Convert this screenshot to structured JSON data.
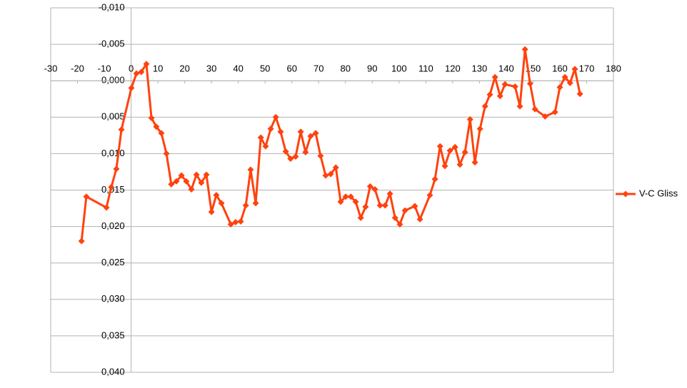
{
  "chart_data": {
    "type": "line",
    "x": [
      -18.5,
      -16.7,
      -9.2,
      -7.4,
      -5.5,
      -3.6,
      0.1,
      2.0,
      3.8,
      5.7,
      7.6,
      9.4,
      11.3,
      13.2,
      15.0,
      16.9,
      18.8,
      20.6,
      22.5,
      24.4,
      26.2,
      28.1,
      30.0,
      31.8,
      33.7,
      37.2,
      39.0,
      40.9,
      42.8,
      44.6,
      46.5,
      48.4,
      50.2,
      52.1,
      54.0,
      55.8,
      57.7,
      59.5,
      61.4,
      63.3,
      65.1,
      67.0,
      68.9,
      70.7,
      72.6,
      74.5,
      76.4,
      78.2,
      80.1,
      82.0,
      83.8,
      85.7,
      87.5,
      89.2,
      91.0,
      92.9,
      94.8,
      96.6,
      98.5,
      100.3,
      102.2,
      105.9,
      107.8,
      111.5,
      113.4,
      115.3,
      117.1,
      119.0,
      120.9,
      122.7,
      124.6,
      126.5,
      128.3,
      130.2,
      132.1,
      133.9,
      135.8,
      137.7,
      139.5,
      143.3,
      145.1,
      147.0,
      148.9,
      150.7,
      154.5,
      158.2,
      160.0,
      161.9,
      163.8,
      165.6,
      167.5
    ],
    "series": [
      {
        "name": "V-C Gliss",
        "color": "#ff420e",
        "values": [
          0.022,
          0.0159,
          0.0174,
          0.0146,
          0.0121,
          0.0067,
          0.001,
          -0.001,
          -0.0012,
          -0.0023,
          0.0051,
          0.0063,
          0.0072,
          0.01,
          0.0142,
          0.0138,
          0.013,
          0.0138,
          0.0149,
          0.0129,
          0.014,
          0.0129,
          0.018,
          0.0157,
          0.0168,
          0.0197,
          0.0194,
          0.0193,
          0.0171,
          0.0122,
          0.0168,
          0.0078,
          0.009,
          0.0066,
          0.005,
          0.007,
          0.0097,
          0.0107,
          0.0104,
          0.007,
          0.0098,
          0.0076,
          0.0072,
          0.0103,
          0.013,
          0.0128,
          0.0119,
          0.0166,
          0.0159,
          0.0159,
          0.0166,
          0.0188,
          0.0173,
          0.0145,
          0.0149,
          0.0171,
          0.0171,
          0.0155,
          0.0188,
          0.0197,
          0.0178,
          0.0172,
          0.019,
          0.0157,
          0.0135,
          0.009,
          0.0117,
          0.0096,
          0.0091,
          0.0115,
          0.0098,
          0.0053,
          0.0112,
          0.0066,
          0.0035,
          0.0019,
          -0.0005,
          0.0021,
          0.0005,
          0.0008,
          0.0035,
          -0.0043,
          0.0004,
          0.0039,
          0.0049,
          0.0043,
          0.0009,
          -0.0005,
          0.0003,
          -0.0016,
          0.0018
        ]
      }
    ],
    "xlim": [
      -30,
      180
    ],
    "xticks": [
      -30,
      -20,
      -10,
      0,
      10,
      20,
      30,
      40,
      50,
      60,
      70,
      80,
      90,
      100,
      110,
      120,
      130,
      140,
      150,
      160,
      170,
      180
    ],
    "ylim": [
      -0.01,
      0.04
    ],
    "y_reversed": true,
    "yticks": [
      {
        "value": -0.01,
        "label": "-0,010"
      },
      {
        "value": -0.005,
        "label": "-0,005"
      },
      {
        "value": 0,
        "label": "0,000"
      },
      {
        "value": 0.005,
        "label": "0,005"
      },
      {
        "value": 0.01,
        "label": "0,010"
      },
      {
        "value": 0.015,
        "label": "0,015"
      },
      {
        "value": 0.02,
        "label": "0,020"
      },
      {
        "value": 0.025,
        "label": "0,025"
      },
      {
        "value": 0.03,
        "label": "0,030"
      },
      {
        "value": 0.035,
        "label": "0,035"
      },
      {
        "value": 0.04,
        "label": "0,040"
      }
    ],
    "grid": true,
    "legend": "right"
  }
}
